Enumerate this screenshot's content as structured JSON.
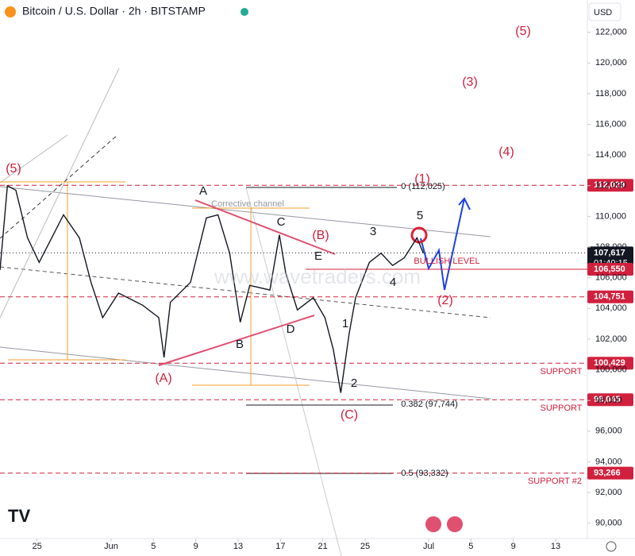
{
  "chart_data": {
    "type": "line",
    "title": "Bitcoin / U.S. Dollar · 2h · BITSTAMP",
    "currency": "USD",
    "watermark": "www.wavetraders.com",
    "series": [
      {
        "name": "BTCUSD",
        "color": "#131722",
        "x": [
          -3.5,
          -2.8,
          -2,
          -0.9,
          0.2,
          2.5,
          4,
          5.1,
          6.2,
          7.7,
          10,
          11.5,
          12,
          12.6,
          14.5,
          16,
          17.1,
          18.2,
          19.2,
          20.1,
          22,
          22.9,
          23.5,
          24.6,
          26.1,
          27.2,
          28,
          28.7,
          29.5,
          30.1,
          31.4,
          32.5,
          33.6,
          34.7,
          35.9,
          36.5
        ],
        "values": [
          106500,
          112000,
          111700,
          108600,
          107000,
          110100,
          108600,
          105700,
          103400,
          105000,
          104200,
          103400,
          100800,
          104400,
          105700,
          109900,
          110100,
          107600,
          103100,
          105500,
          105200,
          108800,
          106300,
          103900,
          104700,
          103400,
          101300,
          98500,
          102400,
          104700,
          107000,
          107600,
          106800,
          107300,
          108600,
          107600
        ]
      }
    ],
    "xlim": [
      -3.5,
      52
    ],
    "xticks": [
      {
        "value": 0,
        "label": "25"
      },
      {
        "value": 7,
        "label": "Jun"
      },
      {
        "value": 11,
        "label": "5"
      },
      {
        "value": 15,
        "label": "9"
      },
      {
        "value": 19,
        "label": "13"
      },
      {
        "value": 23,
        "label": "17"
      },
      {
        "value": 27,
        "label": "21"
      },
      {
        "value": 31,
        "label": "25"
      },
      {
        "value": 37,
        "label": "Jul"
      },
      {
        "value": 41,
        "label": "5"
      },
      {
        "value": 45,
        "label": "9"
      },
      {
        "value": 49,
        "label": "13"
      }
    ],
    "ylim": [
      89000,
      124000
    ],
    "yticks": [
      {
        "value": 90000,
        "label": "90,000"
      },
      {
        "value": 92000,
        "label": "92,000"
      },
      {
        "value": 94000,
        "label": "94,000"
      },
      {
        "value": 96000,
        "label": "96,000"
      },
      {
        "value": 98000,
        "label": "98,000"
      },
      {
        "value": 100000,
        "label": "100,000"
      },
      {
        "value": 102000,
        "label": "102,000"
      },
      {
        "value": 104000,
        "label": "104,000"
      },
      {
        "value": 106000,
        "label": "106,000"
      },
      {
        "value": 108000,
        "label": "108,000"
      },
      {
        "value": 110000,
        "label": "110,000"
      },
      {
        "value": 112000,
        "label": "112,000"
      },
      {
        "value": 114000,
        "label": "114,000"
      },
      {
        "value": 116000,
        "label": "116,000"
      },
      {
        "value": 118000,
        "label": "118,000"
      },
      {
        "value": 120000,
        "label": "120,000"
      },
      {
        "value": 122000,
        "label": "122,000"
      }
    ],
    "levels": [
      {
        "value": 112029,
        "label": "112,029"
      },
      {
        "value": 107617,
        "label": "107,617",
        "countdown": "01:40:15"
      },
      {
        "value": 106550,
        "label": "106,550"
      },
      {
        "value": 104751,
        "label": "104,751"
      },
      {
        "value": 100429,
        "label": "100,429"
      },
      {
        "value": 98045,
        "label": "98,045"
      },
      {
        "value": 93266,
        "label": "93,266"
      }
    ],
    "annotations": [
      "(5)",
      "A",
      "Corrective channel",
      "C",
      "(B)",
      "E",
      "3",
      "(1)",
      "5",
      "BULLISH LEVEL",
      "4",
      "(2)",
      "D",
      "B",
      "1",
      "2",
      "(A)",
      "(C)",
      "(5)",
      "(3)",
      "(4)",
      "0 (112,025)",
      "0.382 (97,744)",
      "0.5 (93,332)",
      "SUPPORT",
      "SUPPORT",
      "SUPPORT #2"
    ]
  }
}
